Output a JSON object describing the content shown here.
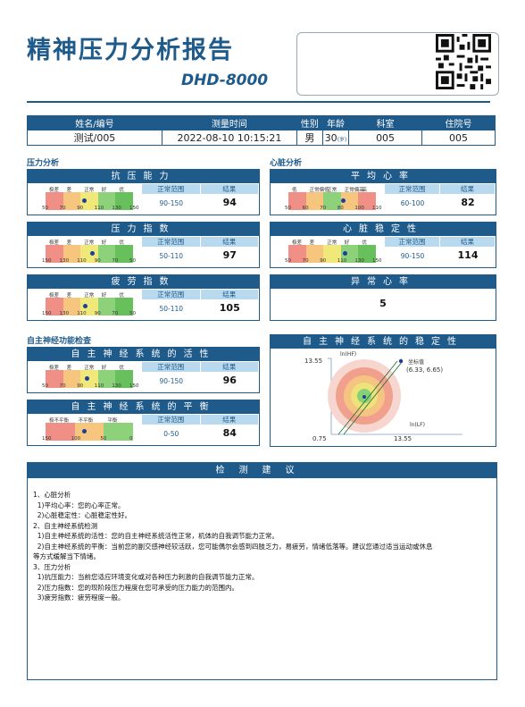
{
  "header": {
    "title": "精神压力分析报告",
    "model": "DHD-8000"
  },
  "info": {
    "headers": [
      "姓名/编号",
      "测量时间",
      "性别",
      "年龄",
      "科室",
      "住院号"
    ],
    "name": "测试/005",
    "time": "2022-08-10 10:15:21",
    "sex": "男",
    "age": "30",
    "age_unit": "(岁)",
    "dept": "005",
    "inpatient": "005"
  },
  "sections": {
    "stress": "压力分析",
    "heart": "心脏分析",
    "ans": "自主神经功能检查"
  },
  "col_labels": {
    "range": "正常范围",
    "result": "结果"
  },
  "stress_panels": [
    {
      "title": "抗压能力",
      "range": "90-150",
      "result": "94",
      "labels": [
        "极差",
        "差",
        "正常",
        "好",
        "优"
      ],
      "ticks": [
        "50",
        "70",
        "90",
        "110",
        "130",
        "150"
      ]
    },
    {
      "title": "压力指数",
      "range": "50-110",
      "result": "97",
      "labels": [
        "极差",
        "差",
        "正常",
        "好",
        "优"
      ],
      "ticks": [
        "150",
        "130",
        "110",
        "90",
        "70",
        "50"
      ]
    },
    {
      "title": "疲劳指数",
      "range": "50-110",
      "result": "105",
      "labels": [
        "极差",
        "差",
        "正常",
        "好",
        "优"
      ],
      "ticks": [
        "150",
        "130",
        "110",
        "90",
        "70",
        "50"
      ]
    }
  ],
  "heart_panels": [
    {
      "title": "平均心率",
      "range": "60-100",
      "result": "82",
      "labels": [
        "低",
        "正常偏低",
        "正常",
        "正常偏高",
        "高"
      ],
      "ticks": [
        "50",
        "60",
        "70",
        "80",
        "100",
        "110"
      ]
    },
    {
      "title": "心脏稳定性",
      "range": "90-150",
      "result": "114",
      "labels": [
        "极差",
        "差",
        "正常",
        "好",
        "优"
      ],
      "ticks": [
        "50",
        "70",
        "90",
        "110",
        "130",
        "150"
      ]
    }
  ],
  "abnormal": {
    "title": "异常心率",
    "value": "5"
  },
  "ans_panels": [
    {
      "title": "自主神经系统的活性",
      "range": "90-150",
      "result": "96",
      "labels": [
        "极差",
        "差",
        "正常",
        "好",
        "优"
      ],
      "ticks": [
        "50",
        "70",
        "90",
        "110",
        "130",
        "150"
      ]
    },
    {
      "title": "自主神经系统的平衡",
      "range": "0-50",
      "result": "84",
      "labels": [
        "极不平衡",
        "不平衡",
        "平衡"
      ],
      "ticks": [
        "150",
        "100",
        "50",
        "0"
      ]
    }
  ],
  "stability": {
    "title": "自主神经系统的稳定性",
    "yaxis": "ln(HF)",
    "xaxis": "ln(LF)",
    "ymax": "13.55",
    "xmin": "0.75",
    "xmax": "13.55",
    "legend": "坐标值",
    "coord": "(6.33, 6.65)"
  },
  "advice": {
    "title": "检测建议",
    "lines": [
      "1、心脏分析",
      "  1)平均心率：您的心率正常。",
      "  2)心脏稳定性：心脏稳定性好。",
      "2、自主神经系统检测",
      "  1)自主神经系统的活性：您的自主神经系统活性正常，机体的自我调节能力正常。",
      "  2)自主神经系统的平衡：当前您的副交感神经较活跃，您可能偶尔会感到四肢乏力，易疲劳，情绪低落等。建议您通过适当运动或休息",
      "等方式缓解当下情绪。",
      "3、压力分析",
      "  1)抗压能力：当前您适应环境变化或对各种压力刺激的自我调节能力正常。",
      "  2)压力指数：您的现阶段压力程度在您可承受的压力能力的范围内。",
      "  3)疲劳指数：疲劳程度一般。"
    ]
  },
  "colors": {
    "brand": "#1e5a8a",
    "red": "#ef8f86",
    "orange": "#f6c57e",
    "yellow": "#f0e879",
    "green": "#8dd17b",
    "dkgreen": "#68c05d"
  }
}
